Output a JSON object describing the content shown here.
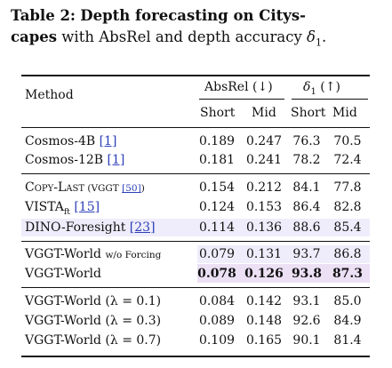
{
  "caption": {
    "label": "Table 2:",
    "title_bold": "Depth forecasting on Citys-capes",
    "title_rest": " with AbsRel and depth accuracy ",
    "delta": "δ",
    "delta_sub": "1",
    "period": "."
  },
  "header": {
    "method": "Method",
    "absrel": "AbsRel (↓)",
    "delta1": "δ",
    "delta1_sub": "1",
    "delta1_arrow": " (↑)",
    "short": "Short",
    "mid": "Mid"
  },
  "rows": [
    {
      "method": "Cosmos-4B ",
      "cite": "[1]",
      "v": [
        "0.189",
        "0.247",
        "76.3",
        "70.5"
      ]
    },
    {
      "method": "Cosmos-12B ",
      "cite": "[1]",
      "v": [
        "0.181",
        "0.241",
        "78.2",
        "72.4"
      ]
    },
    {
      "method": "Copy-Last",
      "method_suffix": " (VGGT ",
      "cite": "[50]",
      "method_close": ")",
      "v": [
        "0.154",
        "0.212",
        "84.1",
        "77.8"
      ]
    },
    {
      "method": "VISTA",
      "method_sub": "ft",
      "cite": "[15]",
      "v": [
        "0.124",
        "0.153",
        "86.4",
        "82.8"
      ]
    },
    {
      "method": "DINO-Foresight ",
      "cite": "[23]",
      "v": [
        "0.114",
        "0.136",
        "88.6",
        "85.4"
      ]
    },
    {
      "method": "VGGT-World ",
      "method_suffix": "w/o Forcing",
      "v": [
        "0.079",
        "0.131",
        "93.7",
        "86.8"
      ]
    },
    {
      "method": "VGGT-World",
      "v": [
        "0.078",
        "0.126",
        "93.8",
        "87.3"
      ]
    },
    {
      "method": "VGGT-World (λ = 0.1)",
      "v": [
        "0.084",
        "0.142",
        "93.1",
        "85.0"
      ]
    },
    {
      "method": "VGGT-World (λ = 0.3)",
      "v": [
        "0.089",
        "0.148",
        "92.6",
        "84.9"
      ]
    },
    {
      "method": "VGGT-World (λ = 0.7)",
      "v": [
        "0.109",
        "0.165",
        "90.1",
        "81.4"
      ]
    }
  ]
}
